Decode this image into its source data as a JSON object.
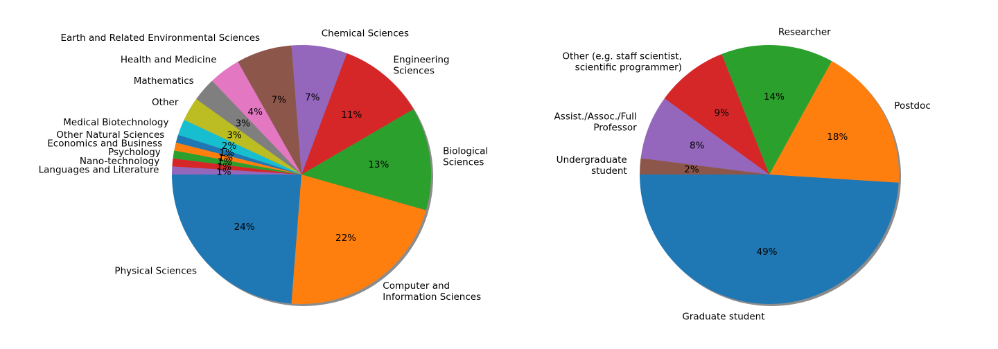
{
  "chart_data": [
    {
      "type": "pie",
      "title": "",
      "start_angle_deg": 180,
      "direction": "counterclockwise",
      "shadow": true,
      "slices": [
        {
          "label": "Physical Sciences",
          "value": 24,
          "pct_label": "24%",
          "color": "#1f77b4"
        },
        {
          "label": "Computer and\nInformation Sciences",
          "value": 22,
          "pct_label": "22%",
          "color": "#ff7f0e"
        },
        {
          "label": "Biological\nSciences",
          "value": 13,
          "pct_label": "13%",
          "color": "#2ca02c"
        },
        {
          "label": "Engineering\nSciences",
          "value": 11,
          "pct_label": "11%",
          "color": "#d62728"
        },
        {
          "label": "Chemical Sciences",
          "value": 7,
          "pct_label": "7%",
          "color": "#9467bd"
        },
        {
          "label": "Earth and Related Environmental Sciences",
          "value": 7,
          "pct_label": "7%",
          "color": "#8c564b"
        },
        {
          "label": "Health and Medicine",
          "value": 4,
          "pct_label": "4%",
          "color": "#e377c2"
        },
        {
          "label": "Mathematics",
          "value": 3,
          "pct_label": "3%",
          "color": "#7f7f7f"
        },
        {
          "label": "Other",
          "value": 3,
          "pct_label": "3%",
          "color": "#bcbd22"
        },
        {
          "label": "Medical Biotechnology",
          "value": 2,
          "pct_label": "2%",
          "color": "#17becf"
        },
        {
          "label": "Other Natural Sciences",
          "value": 1,
          "pct_label": "1%",
          "color": "#1f77b4"
        },
        {
          "label": "Economics and Business",
          "value": 1,
          "pct_label": "1%",
          "color": "#ff7f0e"
        },
        {
          "label": "Psychology",
          "value": 1,
          "pct_label": "1%",
          "color": "#2ca02c"
        },
        {
          "label": "Nano-technology",
          "value": 1,
          "pct_label": "1%",
          "color": "#d62728"
        },
        {
          "label": "Languages and Literature",
          "value": 1,
          "pct_label": "1%",
          "color": "#9467bd"
        }
      ]
    },
    {
      "type": "pie",
      "title": "",
      "start_angle_deg": 180,
      "direction": "counterclockwise",
      "shadow": true,
      "slices": [
        {
          "label": "Graduate student",
          "value": 49,
          "pct_label": "49%",
          "color": "#1f77b4"
        },
        {
          "label": "Postdoc",
          "value": 18,
          "pct_label": "18%",
          "color": "#ff7f0e"
        },
        {
          "label": "Researcher",
          "value": 14,
          "pct_label": "14%",
          "color": "#2ca02c"
        },
        {
          "label": "Other (e.g. staff scientist,\nscientific programmer)",
          "value": 9,
          "pct_label": "9%",
          "color": "#d62728"
        },
        {
          "label": "Assist./Assoc./Full\nProfessor",
          "value": 8,
          "pct_label": "8%",
          "color": "#9467bd"
        },
        {
          "label": "Undergraduate\nstudent",
          "value": 2,
          "pct_label": "2%",
          "color": "#8c564b"
        }
      ]
    }
  ]
}
